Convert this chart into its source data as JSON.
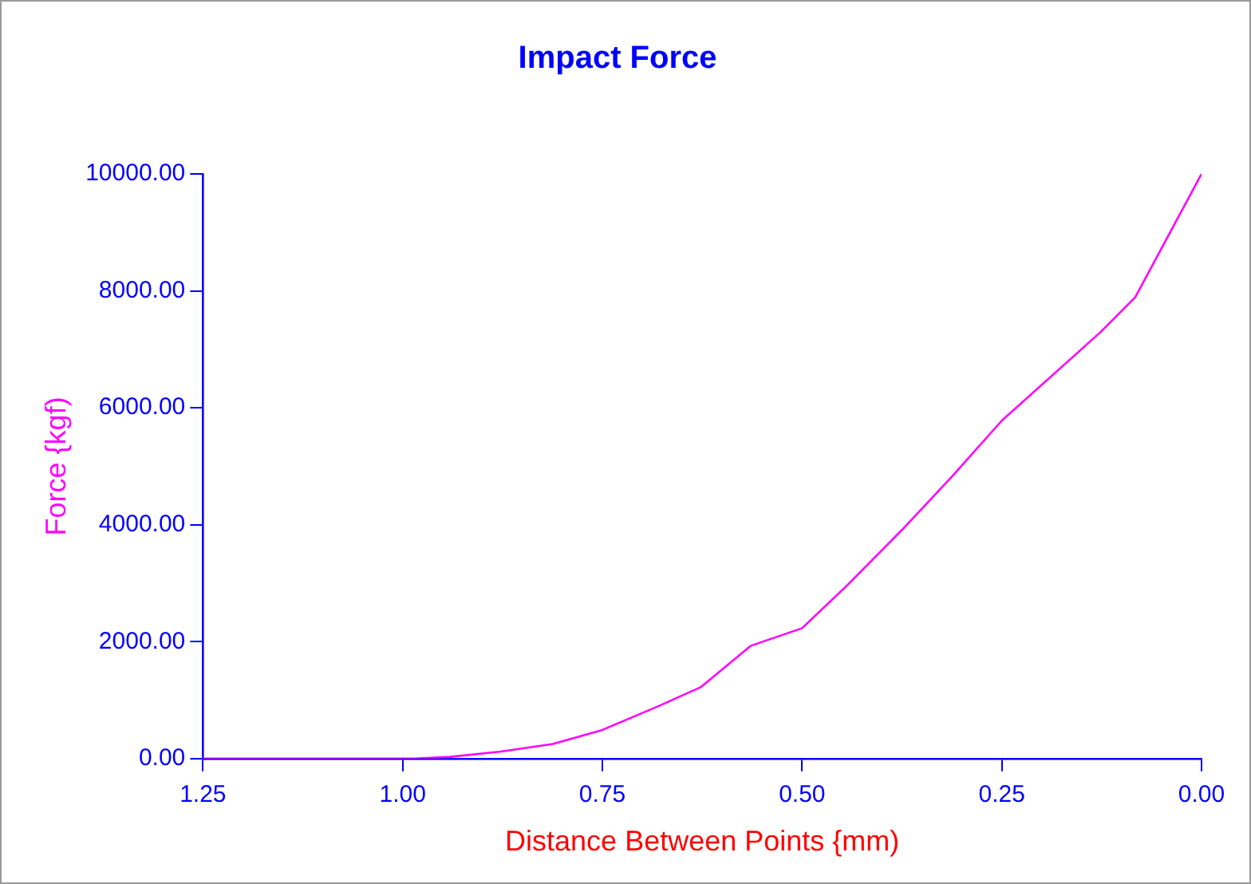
{
  "chart_data": {
    "type": "line",
    "title": "Impact Force",
    "xlabel": "Distance Between Points {mm)",
    "ylabel": "Force {kgf)",
    "x": [
      1.25,
      1.1,
      0.985,
      0.94,
      0.877,
      0.812,
      0.75,
      0.681,
      0.627,
      0.564,
      0.5,
      0.443,
      0.375,
      0.312,
      0.25,
      0.126,
      0.083,
      0.0
    ],
    "series": [
      {
        "color": "#ff00ff",
        "values": [
          0,
          0,
          0,
          30,
          120,
          250,
          490,
          890,
          1220,
          1930,
          2230,
          2970,
          3910,
          4830,
          5780,
          7300,
          7890,
          10000
        ]
      }
    ],
    "xlim": [
      1.25,
      0
    ],
    "xticks": [
      {
        "value": 1.25,
        "label": "1.25"
      },
      {
        "value": 1,
        "label": "1.00"
      },
      {
        "value": 0.75,
        "label": "0.75"
      },
      {
        "value": 0.5,
        "label": "0.50"
      },
      {
        "value": 0.25,
        "label": "0.25"
      },
      {
        "value": 0,
        "label": "0.00"
      }
    ],
    "ylim": [
      0,
      10000
    ],
    "yticks": [
      {
        "value": 0,
        "label": "0.00"
      },
      {
        "value": 2000,
        "label": "2000.00"
      },
      {
        "value": 4000,
        "label": "4000.00"
      },
      {
        "value": 6000,
        "label": "6000.00"
      },
      {
        "value": 8000,
        "label": "8000.00"
      },
      {
        "value": 10000,
        "label": "10000.00"
      }
    ],
    "grid": false,
    "legend": false,
    "marker": "none",
    "line_style": "solid"
  }
}
